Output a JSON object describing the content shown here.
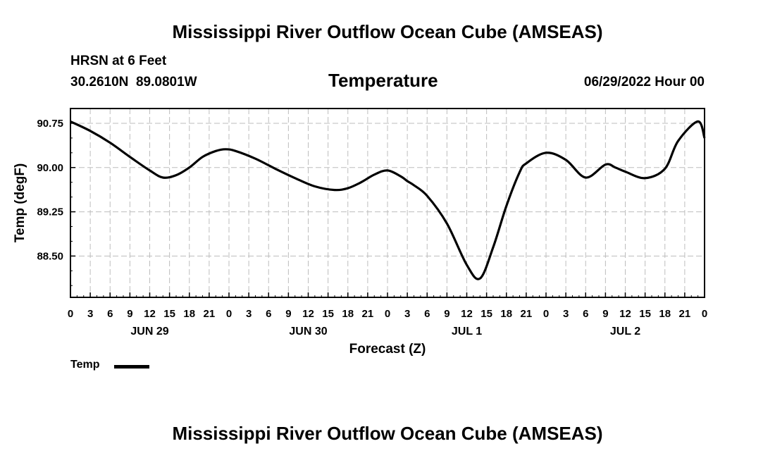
{
  "header": {
    "title": "Mississippi River Outflow Ocean Cube (AMSEAS)",
    "station": "HRSN at 6 Feet",
    "location": "30.2610N  89.0801W",
    "subtitle": "Temperature",
    "datetime": "06/29/2022 Hour 00"
  },
  "footer": {
    "title": "Mississippi River Outflow Ocean Cube (AMSEAS)"
  },
  "legend": {
    "label": "Temp"
  },
  "chart_data": {
    "type": "line",
    "title": "Temperature",
    "xlabel": "Forecast (Z)",
    "ylabel": "Temp (degF)",
    "xlim": [
      0,
      96
    ],
    "ylim": [
      87.8,
      91.0
    ],
    "y_ticks": [
      88.5,
      89.25,
      90.0,
      90.75
    ],
    "y_tick_labels": [
      "88.50",
      "89.25",
      "90.00",
      "90.75"
    ],
    "x_ticks": [
      0,
      3,
      6,
      9,
      12,
      15,
      18,
      21,
      24,
      27,
      30,
      33,
      36,
      39,
      42,
      45,
      48,
      51,
      54,
      57,
      60,
      63,
      66,
      69,
      72,
      75,
      78,
      81,
      84,
      87,
      90,
      93,
      96
    ],
    "x_tick_labels": [
      "0",
      "3",
      "6",
      "9",
      "12",
      "15",
      "18",
      "21",
      "0",
      "3",
      "6",
      "9",
      "12",
      "15",
      "18",
      "21",
      "0",
      "3",
      "6",
      "9",
      "12",
      "15",
      "18",
      "21",
      "0",
      "3",
      "6",
      "9",
      "12",
      "15",
      "18",
      "21",
      "0"
    ],
    "day_labels": [
      {
        "x": 12,
        "label": "JUN 29"
      },
      {
        "x": 36,
        "label": "JUN 30"
      },
      {
        "x": 60,
        "label": "JUL 1"
      },
      {
        "x": 84,
        "label": "JUL 2"
      }
    ],
    "grid": true,
    "series": [
      {
        "name": "Temp",
        "color": "#000000",
        "x": [
          0,
          3,
          6,
          9,
          12,
          14,
          16,
          18,
          20,
          22,
          23.5,
          25,
          28,
          31,
          34,
          37,
          40,
          42,
          44,
          46,
          48,
          50,
          51,
          52,
          54,
          57,
          60,
          62,
          64,
          66,
          68,
          69,
          72,
          75,
          78,
          81,
          82.5,
          84,
          87,
          90,
          92,
          95,
          96
        ],
        "y": [
          90.78,
          90.62,
          90.42,
          90.18,
          89.95,
          89.83,
          89.87,
          90.0,
          90.18,
          90.28,
          90.31,
          90.28,
          90.15,
          89.98,
          89.82,
          89.68,
          89.62,
          89.65,
          89.75,
          89.88,
          89.95,
          89.85,
          89.77,
          89.7,
          89.52,
          89.05,
          88.35,
          88.12,
          88.65,
          89.35,
          89.92,
          90.07,
          90.25,
          90.13,
          89.83,
          90.05,
          90.0,
          89.93,
          89.82,
          89.98,
          90.45,
          90.78,
          90.5
        ]
      }
    ]
  }
}
